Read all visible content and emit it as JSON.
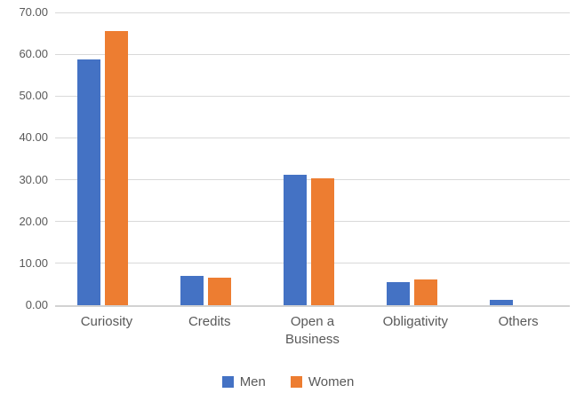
{
  "chart_data": {
    "type": "bar",
    "title": "",
    "xlabel": "",
    "ylabel": "",
    "categories": [
      "Curiosity",
      "Credits",
      "Open a Business",
      "Obligativity",
      "Others"
    ],
    "series": [
      {
        "name": "Men",
        "color": "#4472C4",
        "values": [
          58.8,
          6.9,
          31.1,
          5.6,
          1.3
        ]
      },
      {
        "name": "Women",
        "color": "#ED7D31",
        "values": [
          65.5,
          6.6,
          30.3,
          6.2,
          0
        ]
      }
    ],
    "ylim": [
      0,
      70
    ],
    "ytick_step": 10,
    "ytick_labels": [
      "0.00",
      "10.00",
      "20.00",
      "30.00",
      "40.00",
      "50.00",
      "60.00",
      "70.00"
    ],
    "grid": true,
    "legend_position": "bottom"
  },
  "colors": {
    "gridline": "#D9D9D9",
    "axis_line": "#D2D2D2",
    "text": "#595959",
    "background": "#FFFFFF"
  }
}
